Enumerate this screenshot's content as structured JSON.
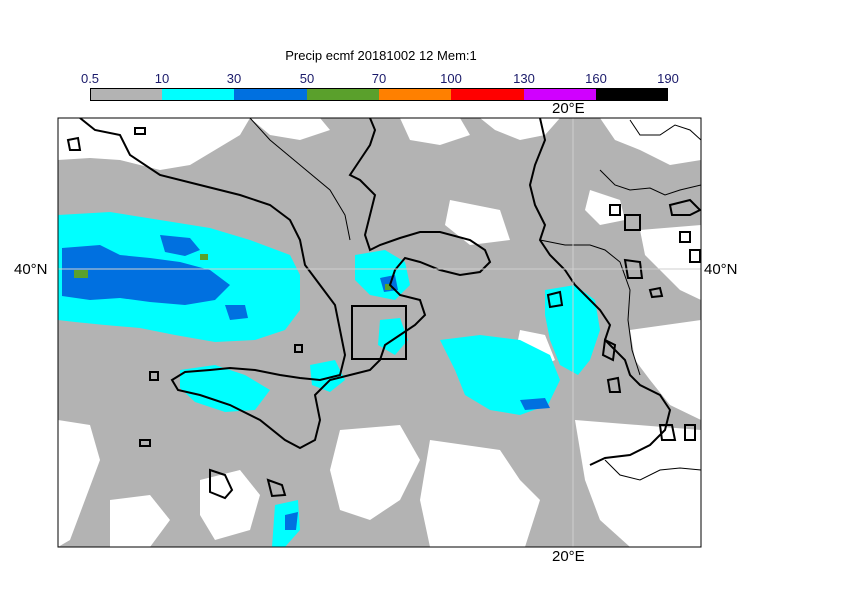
{
  "title": "Precip ecmf 20181002 12 Mem:1",
  "legend": {
    "thresholds": [
      "0.5",
      "10",
      "30",
      "50",
      "70",
      "100",
      "130",
      "160",
      "190"
    ],
    "colors": [
      "#b3b3b3",
      "#00ffff",
      "#0070e0",
      "#5aa02c",
      "#ff8000",
      "#ff0000",
      "#d000ff",
      "#000000"
    ]
  },
  "labels": {
    "lon_top": "20°E",
    "lon_bottom": "20°E",
    "lat_left": "40°N",
    "lat_right": "40°N"
  },
  "colors": {
    "land_line": "#000000",
    "no_precip": "#ffffff"
  }
}
